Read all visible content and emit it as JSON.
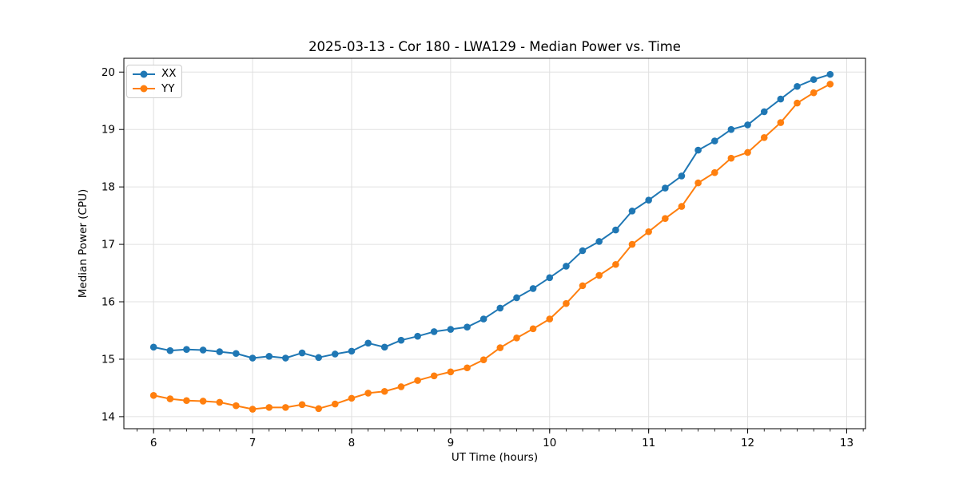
{
  "figure": {
    "title": "2025-03-13 - Cor 180 - LWA129 - Median Power vs. Time"
  },
  "chart_data": {
    "type": "line",
    "title": "2025-03-13 - Cor 180 - LWA129 - Median Power vs. Time",
    "xlabel": "UT Time (hours)",
    "ylabel": "Median Power (CPU)",
    "xlim": [
      5.7,
      13.19
    ],
    "ylim": [
      13.79,
      20.24
    ],
    "x_ticks": [
      6,
      7,
      8,
      9,
      10,
      11,
      12,
      13
    ],
    "x_tick_labels": [
      "6",
      "7",
      "8",
      "9",
      "10",
      "11",
      "12",
      "13"
    ],
    "y_ticks": [
      14,
      15,
      16,
      17,
      18,
      19,
      20
    ],
    "y_tick_labels": [
      "14",
      "15",
      "16",
      "17",
      "18",
      "19",
      "20"
    ],
    "x_minor_tick_step": 0.16667,
    "grid": true,
    "grid_color": "#e0e0e0",
    "legend_position": "upper-left",
    "marker": "circle",
    "x": [
      6.0,
      6.167,
      6.333,
      6.5,
      6.667,
      6.833,
      7.0,
      7.167,
      7.333,
      7.5,
      7.667,
      7.833,
      8.0,
      8.167,
      8.333,
      8.5,
      8.667,
      8.833,
      9.0,
      9.167,
      9.333,
      9.5,
      9.667,
      9.833,
      10.0,
      10.167,
      10.333,
      10.5,
      10.667,
      10.833,
      11.0,
      11.167,
      11.333,
      11.5,
      11.667,
      11.833,
      12.0,
      12.167,
      12.333,
      12.5,
      12.667,
      12.833
    ],
    "series": [
      {
        "name": "XX",
        "color": "#1f77b4",
        "values": [
          15.21,
          15.15,
          15.17,
          15.16,
          15.13,
          15.1,
          15.02,
          15.05,
          15.02,
          15.11,
          15.03,
          15.09,
          15.14,
          15.28,
          15.21,
          15.33,
          15.4,
          15.48,
          15.52,
          15.56,
          15.7,
          15.89,
          16.07,
          16.23,
          16.42,
          16.62,
          16.89,
          17.05,
          17.25,
          17.58,
          17.77,
          17.98,
          18.19,
          18.64,
          18.8,
          19.0,
          19.08,
          19.31,
          19.53,
          19.75,
          19.87,
          19.96
        ]
      },
      {
        "name": "YY",
        "color": "#ff7f0e",
        "values": [
          14.37,
          14.31,
          14.28,
          14.27,
          14.25,
          14.19,
          14.13,
          14.16,
          14.16,
          14.21,
          14.14,
          14.22,
          14.32,
          14.41,
          14.44,
          14.52,
          14.63,
          14.71,
          14.78,
          14.85,
          14.99,
          15.2,
          15.37,
          15.53,
          15.7,
          15.97,
          16.28,
          16.46,
          16.65,
          17.0,
          17.22,
          17.45,
          17.66,
          18.07,
          18.25,
          18.5,
          18.6,
          18.86,
          19.12,
          19.46,
          19.64,
          19.79
        ]
      }
    ]
  },
  "legend": {
    "items": [
      {
        "label": "XX",
        "color": "#1f77b4"
      },
      {
        "label": "YY",
        "color": "#ff7f0e"
      }
    ]
  }
}
